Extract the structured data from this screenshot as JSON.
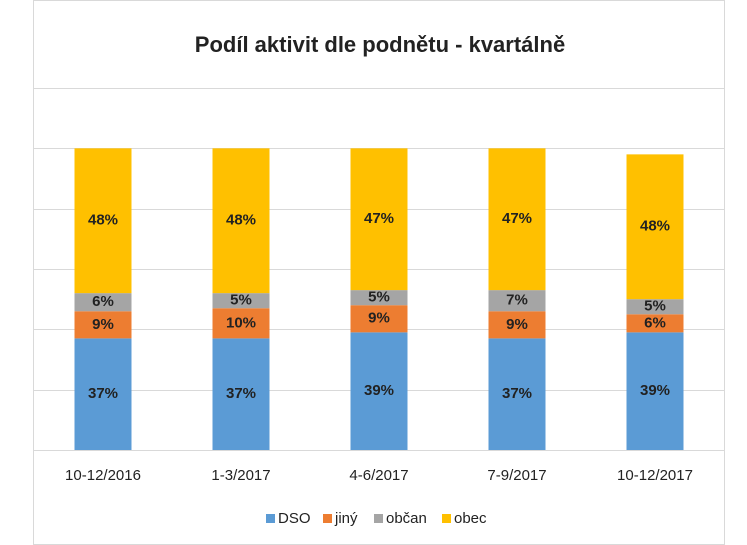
{
  "chart_data": {
    "type": "bar",
    "stacked": true,
    "title": "Podíl aktivit dle podnětu - kvartálně",
    "categories": [
      "10-12/2016",
      "1-3/2017",
      "4-6/2017",
      "7-9/2017",
      "10-12/2017"
    ],
    "series": [
      {
        "name": "DSO",
        "color": "#5b9bd5",
        "values": [
          37,
          37,
          39,
          37,
          39
        ],
        "value_labels": [
          "37%",
          "37%",
          "39%",
          "37%",
          "39%"
        ]
      },
      {
        "name": "jiný",
        "color": "#ed7d31",
        "values": [
          9,
          10,
          9,
          9,
          6
        ],
        "value_labels": [
          "9%",
          "10%",
          "9%",
          "9%",
          "6%"
        ]
      },
      {
        "name": "občan",
        "color": "#a5a5a5",
        "values": [
          6,
          5,
          5,
          7,
          5
        ],
        "value_labels": [
          "6%",
          "5%",
          "5%",
          "7%",
          "5%"
        ]
      },
      {
        "name": "obec",
        "color": "#ffc000",
        "values": [
          48,
          48,
          47,
          47,
          48
        ],
        "value_labels": [
          "48%",
          "48%",
          "47%",
          "47%",
          "48%"
        ]
      }
    ],
    "ylim": [
      0,
      120
    ],
    "yticks": [
      0,
      20,
      40,
      60,
      80,
      100,
      120
    ],
    "grid": true,
    "legend": "bottom"
  }
}
